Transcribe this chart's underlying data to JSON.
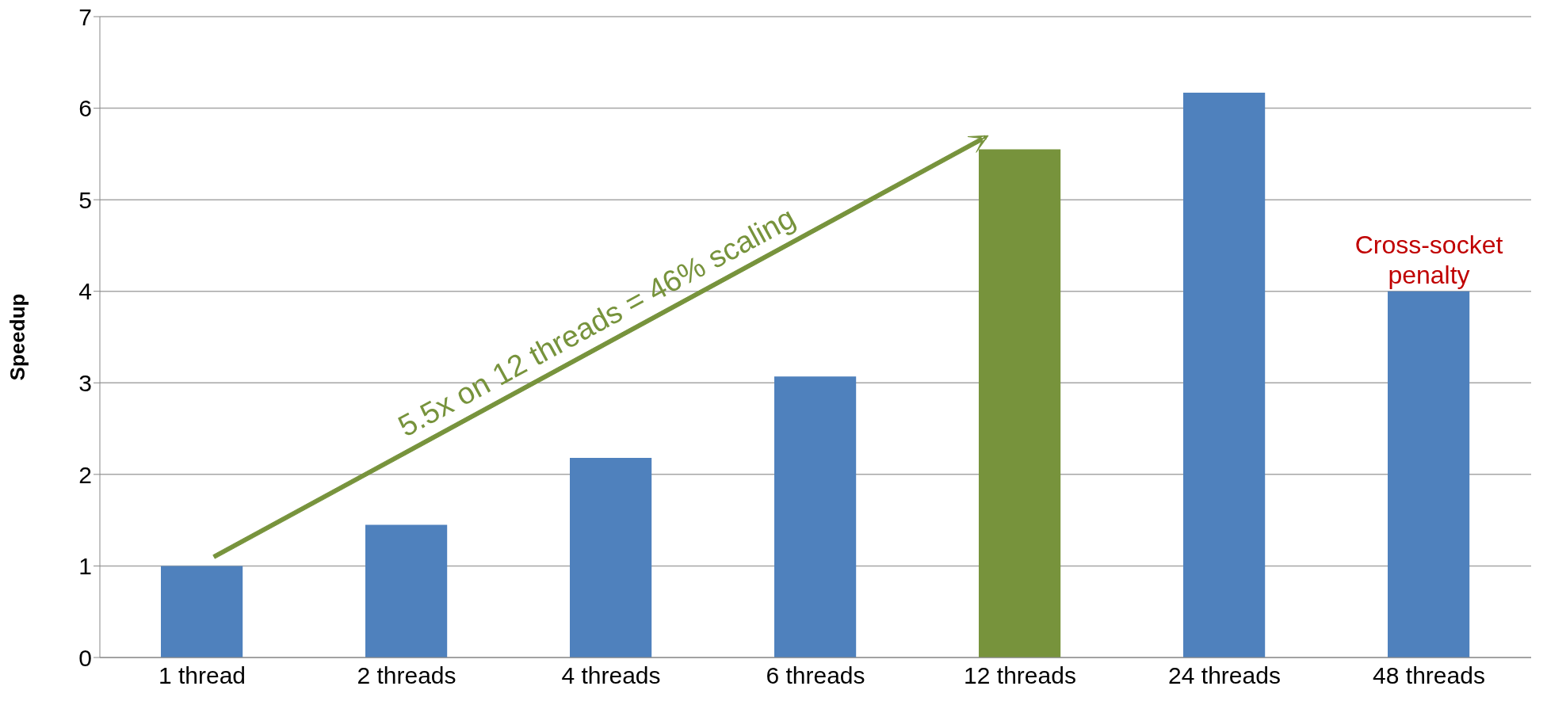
{
  "chart_data": {
    "type": "bar",
    "ylabel": "Speedup",
    "categories": [
      "1 thread",
      "2 threads",
      "4 threads",
      "6 threads",
      "12 threads",
      "24 threads",
      "48 threads"
    ],
    "values": [
      1.0,
      1.45,
      2.18,
      3.07,
      5.55,
      6.17,
      4.0
    ],
    "colors": [
      "#4f81bd",
      "#4f81bd",
      "#4f81bd",
      "#4f81bd",
      "#77933c",
      "#4f81bd",
      "#4f81bd"
    ],
    "ylim": [
      0,
      7
    ],
    "yticks": [
      0,
      1,
      2,
      3,
      4,
      5,
      6,
      7
    ],
    "grid": "y",
    "annotations": [
      "5.5x on 12 threads = 46% scaling",
      {
        "text": "Cross-socket penalty",
        "x": "48 threads",
        "y": 4
      }
    ]
  }
}
